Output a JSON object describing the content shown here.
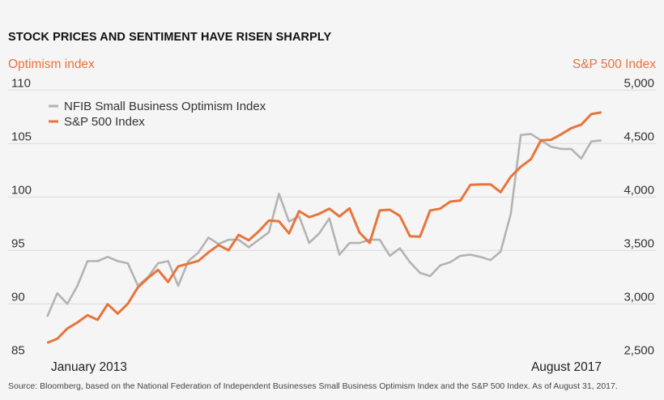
{
  "chart_data": {
    "type": "line",
    "title": "STOCK PRICES AND SENTIMENT HAVE RISEN SHARPLY",
    "ylabel_left": "Optimism index",
    "ylabel_right": "S&P 500 Index",
    "ylim_left": [
      85,
      110
    ],
    "ylim_right": [
      2500,
      5000
    ],
    "yticks_left": [
      "110",
      "105",
      "100",
      "95",
      "90",
      "85"
    ],
    "yticks_right": [
      "5,000",
      "4,500",
      "4,000",
      "3,500",
      "3,000",
      "2,500"
    ],
    "x_range": [
      "January 2013",
      "August 2017"
    ],
    "x_tick_labels": [
      "January 2013",
      "August 2017"
    ],
    "frequency": "monthly",
    "grid": true,
    "legend_placement": "top-left",
    "series": [
      {
        "name": "NFIB Small Business Optimism Index",
        "axis": "left",
        "color": "#b3b3b3",
        "values": [
          88.8,
          91.0,
          90.0,
          91.7,
          94.0,
          94.0,
          94.4,
          94.0,
          93.8,
          91.7,
          92.5,
          93.8,
          94.0,
          91.7,
          94.0,
          94.8,
          96.2,
          95.6,
          96.0,
          96.0,
          95.3,
          96.0,
          96.7,
          100.3,
          97.7,
          98.2,
          95.7,
          96.6,
          98.0,
          94.6,
          95.7,
          95.7,
          96.0,
          96.0,
          94.5,
          95.2,
          93.9,
          92.9,
          92.6,
          93.6,
          93.9,
          94.5,
          94.6,
          94.4,
          94.1,
          94.9,
          98.4,
          105.8,
          105.9,
          105.3,
          104.7,
          104.5,
          104.5,
          103.6,
          105.2,
          105.3
        ]
      },
      {
        "name": "S&P 500 Index",
        "axis": "right",
        "color": "#e8743b",
        "values": [
          2636,
          2674,
          2770,
          2826,
          2894,
          2851,
          2997,
          2909,
          3002,
          3154,
          3242,
          3318,
          3205,
          3351,
          3376,
          3402,
          3482,
          3550,
          3502,
          3646,
          3595,
          3679,
          3780,
          3773,
          3659,
          3868,
          3811,
          3843,
          3891,
          3818,
          3894,
          3667,
          3571,
          3874,
          3881,
          3823,
          3633,
          3629,
          3874,
          3891,
          3957,
          3967,
          4114,
          4118,
          4118,
          4045,
          4189,
          4283,
          4353,
          4530,
          4535,
          4586,
          4644,
          4677,
          4776,
          4792
        ]
      }
    ],
    "source": "Source: Bloomberg, based on the National Federation of Independent Businesses Small Business Optimism Index and the S&P 500 Index. As of August 31, 2017."
  }
}
